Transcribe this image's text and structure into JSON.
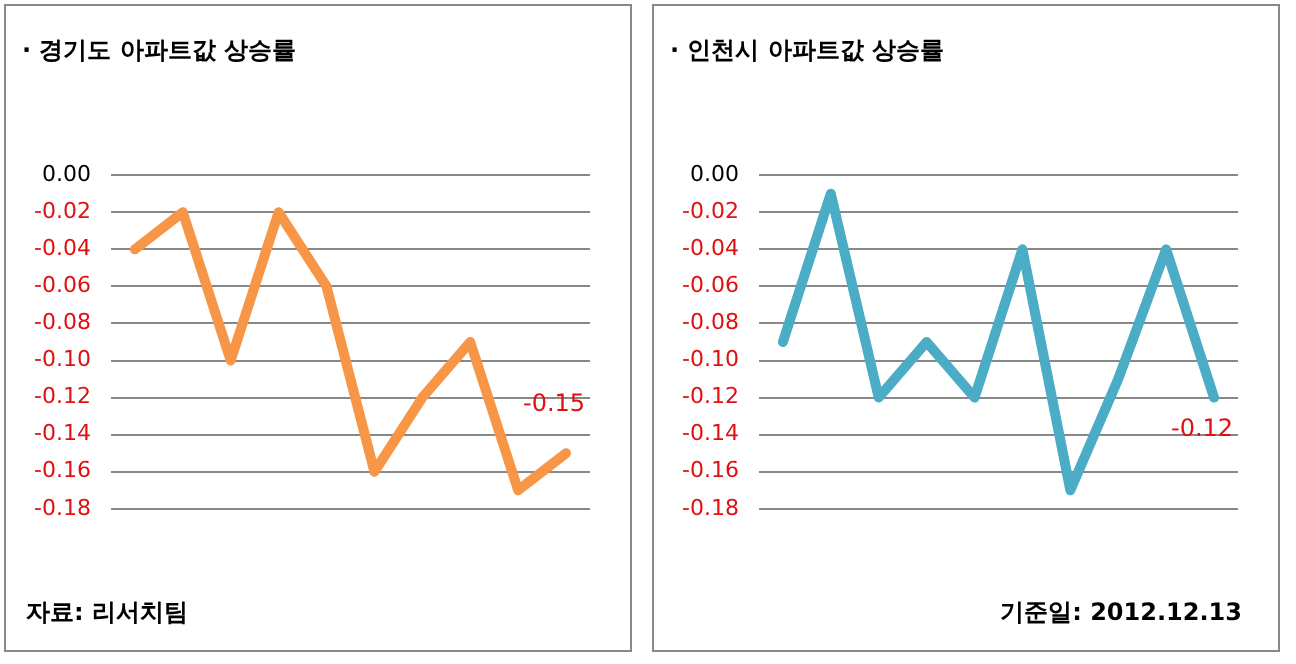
{
  "chart_data": [
    {
      "type": "line",
      "title": "· 경기도 아파트값 상승률",
      "categories": [
        null,
        null,
        null,
        null,
        null,
        null,
        null,
        null,
        null,
        null
      ],
      "series": [
        {
          "color": "#f79646",
          "values": [
            -0.04,
            -0.02,
            -0.1,
            -0.02,
            -0.06,
            -0.16,
            -0.12,
            -0.09,
            -0.17,
            -0.15
          ],
          "value_labels": [
            null,
            null,
            null,
            null,
            null,
            null,
            null,
            null,
            null,
            "-0.15"
          ]
        }
      ],
      "ylim": [
        -0.18,
        0
      ],
      "yticks": [
        {
          "value": 0,
          "label": "0.00"
        },
        {
          "value": -0.02,
          "label": "-0.02"
        },
        {
          "value": -0.04,
          "label": "-0.04"
        },
        {
          "value": -0.06,
          "label": "-0.06"
        },
        {
          "value": -0.08,
          "label": "-0.08"
        },
        {
          "value": -0.1,
          "label": "-0.10"
        },
        {
          "value": -0.12,
          "label": "-0.12"
        },
        {
          "value": -0.14,
          "label": "-0.14"
        },
        {
          "value": -0.16,
          "label": "-0.16"
        },
        {
          "value": -0.18,
          "label": "-0.18"
        }
      ],
      "grid": "y",
      "legend": false,
      "marker": "none",
      "tick_labels": "y",
      "annotations": [
        "자료: 리서치팀"
      ]
    },
    {
      "type": "line",
      "title": "· 인천시 아파트값 상승률",
      "categories": [
        null,
        null,
        null,
        null,
        null,
        null,
        null,
        null,
        null,
        null
      ],
      "series": [
        {
          "color": "#4bacc6",
          "values": [
            -0.09,
            -0.01,
            -0.12,
            -0.09,
            -0.12,
            -0.04,
            -0.17,
            -0.11,
            -0.04,
            -0.12
          ],
          "value_labels": [
            null,
            null,
            null,
            null,
            null,
            null,
            null,
            null,
            null,
            "-0.12"
          ]
        }
      ],
      "ylim": [
        -0.18,
        0
      ],
      "yticks": [
        {
          "value": 0,
          "label": "0.00"
        },
        {
          "value": -0.02,
          "label": "-0.02"
        },
        {
          "value": -0.04,
          "label": "-0.04"
        },
        {
          "value": -0.06,
          "label": "-0.06"
        },
        {
          "value": -0.08,
          "label": "-0.08"
        },
        {
          "value": -0.1,
          "label": "-0.10"
        },
        {
          "value": -0.12,
          "label": "-0.12"
        },
        {
          "value": -0.14,
          "label": "-0.14"
        },
        {
          "value": -0.16,
          "label": "-0.16"
        },
        {
          "value": -0.18,
          "label": "-0.18"
        }
      ],
      "grid": "y",
      "legend": false,
      "marker": "none",
      "tick_labels": "y",
      "annotations": [
        "기준일: 2012.12.13"
      ]
    }
  ]
}
